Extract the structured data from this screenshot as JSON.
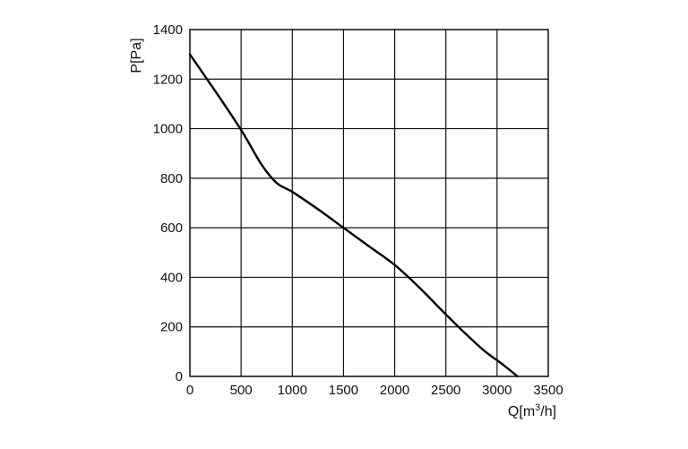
{
  "chart_data": {
    "type": "line",
    "xlabel": {
      "prefix": "Q[m",
      "sup": "3",
      "suffix": "/h]"
    },
    "ylabel": "P[Pa]",
    "xlim": [
      0,
      3500
    ],
    "ylim": [
      0,
      1400
    ],
    "xticks": [
      0,
      500,
      1000,
      1500,
      2000,
      2500,
      3000,
      3500
    ],
    "yticks": [
      0,
      200,
      400,
      600,
      800,
      1000,
      1200,
      1400
    ],
    "grid": true,
    "series": [
      {
        "x": [
          0,
          250,
          500,
          700,
          850,
          1000,
          1250,
          1500,
          1750,
          2000,
          2250,
          2500,
          2750,
          2900,
          3050,
          3200
        ],
        "y": [
          1300,
          1150,
          995,
          855,
          780,
          745,
          675,
          600,
          525,
          450,
          355,
          250,
          150,
          95,
          50,
          0
        ]
      }
    ]
  }
}
